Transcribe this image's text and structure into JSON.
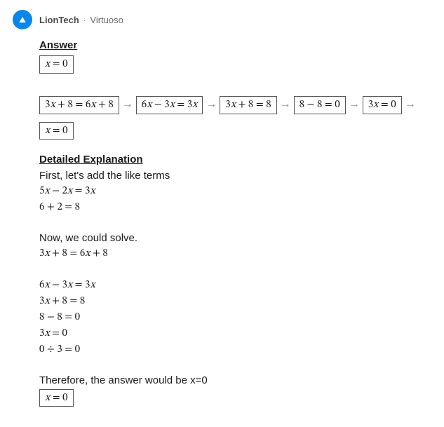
{
  "header": {
    "avatar_bg": "#0a85ea",
    "avatar_fg": "#ffffff",
    "username": "LionTech",
    "separator": "·",
    "role": "Virtuoso"
  },
  "answer": {
    "title": "Answer",
    "boxed": "x = 0"
  },
  "flow": {
    "steps": [
      "3x + 8 = 6x + 8",
      "6x − 3x = 3x",
      "3x + 8 = 8",
      "8 − 8 = 0",
      "3x = 0",
      "x = 0"
    ],
    "arrow": "→"
  },
  "explanation": {
    "title": "Detailed Explanation",
    "intro": "First, let's add the like terms",
    "like_terms": [
      "5x − 2x = 3x",
      "6 + 2 = 8"
    ],
    "solve_intro": "Now, we could solve.",
    "solve_steps": [
      "3x + 8 = 6x + 8",
      "",
      "6x − 3x = 3x",
      "3x + 8 = 8",
      "8 − 8 = 0",
      "3x = 0",
      "0 ÷ 3 = 0"
    ],
    "conclusion": "Therefore, the answer would be x=0",
    "final_boxed": "x = 0"
  },
  "style": {
    "math_fontsize": 15,
    "title_fontsize": 15,
    "body_fontsize": 15,
    "border_color": "#555555",
    "arrow_color": "#888888",
    "text_color": "#1a1a1a",
    "background_color": "#ffffff"
  }
}
